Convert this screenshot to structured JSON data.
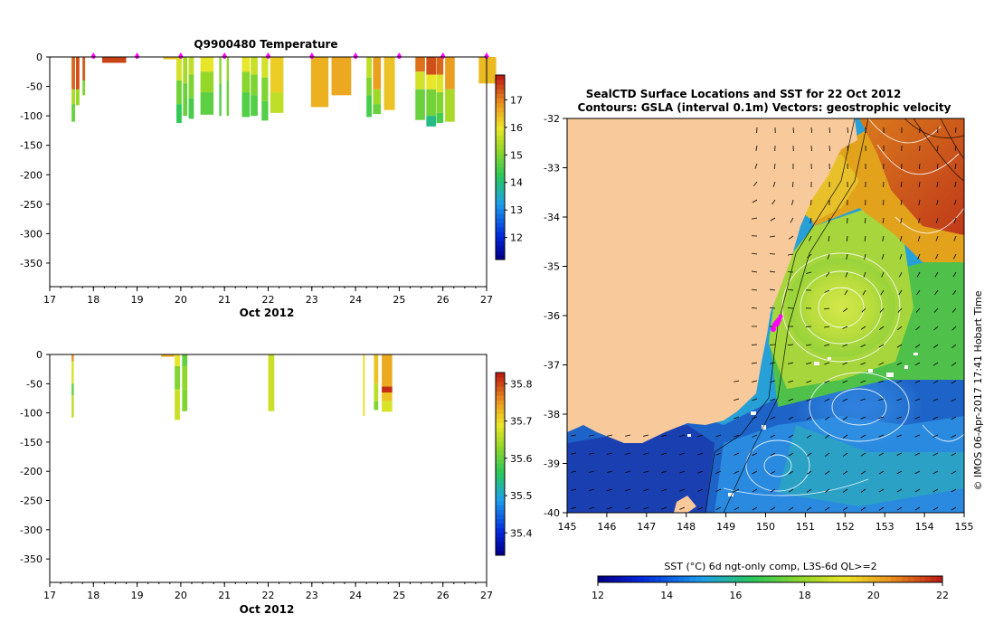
{
  "chart_data": [
    {
      "id": "temperature-panel",
      "type": "heatmap",
      "title": "Q9900480  Temperature",
      "xlabel": "Oct 2012",
      "ylabel": "",
      "x_ticks": [
        "17",
        "18",
        "19",
        "20",
        "21",
        "22",
        "23",
        "24",
        "25",
        "26",
        "27"
      ],
      "y_ticks": [
        "0",
        "-50",
        "-100",
        "-150",
        "-200",
        "-250",
        "-300",
        "-350"
      ],
      "xlim": [
        17,
        27
      ],
      "ylim": [
        -390,
        0
      ],
      "colorbar": {
        "ticks": [
          "12",
          "13",
          "14",
          "15",
          "16",
          "17"
        ],
        "range": [
          11.2,
          17.9
        ]
      },
      "profile_markers": [
        18.0,
        19.0,
        20.0,
        21.0,
        22.0,
        23.0,
        24.0,
        25.0,
        26.0,
        27.0
      ],
      "profiles": [
        {
          "x": 17.5,
          "w": 0.08,
          "layers": [
            [
              0,
              -55,
              17.3
            ],
            [
              -55,
              -80,
              15.4
            ],
            [
              -80,
              -110,
              14.8
            ]
          ]
        },
        {
          "x": 17.6,
          "w": 0.08,
          "layers": [
            [
              0,
              -55,
              17.5
            ],
            [
              -55,
              -82,
              15.2
            ]
          ]
        },
        {
          "x": 17.75,
          "w": 0.06,
          "layers": [
            [
              0,
              -40,
              17.4
            ],
            [
              -40,
              -65,
              15.0
            ]
          ]
        },
        {
          "x": 18.2,
          "w": 0.55,
          "layers": [
            [
              0,
              -10,
              17.6
            ]
          ]
        },
        {
          "x": 19.6,
          "w": 0.3,
          "layers": [
            [
              0,
              -4,
              16.4
            ]
          ]
        },
        {
          "x": 19.9,
          "w": 0.12,
          "layers": [
            [
              0,
              -40,
              15.8
            ],
            [
              -40,
              -80,
              14.9
            ],
            [
              -80,
              -112,
              14.3
            ]
          ]
        },
        {
          "x": 20.05,
          "w": 0.1,
          "layers": [
            [
              0,
              -45,
              15.4
            ],
            [
              -45,
              -100,
              14.8
            ]
          ]
        },
        {
          "x": 20.18,
          "w": 0.12,
          "layers": [
            [
              0,
              -30,
              15.6
            ],
            [
              -30,
              -70,
              15.0
            ],
            [
              -70,
              -105,
              14.5
            ]
          ]
        },
        {
          "x": 20.45,
          "w": 0.3,
          "layers": [
            [
              0,
              -25,
              16.0
            ],
            [
              -25,
              -60,
              15.2
            ],
            [
              -60,
              -98,
              14.7
            ]
          ]
        },
        {
          "x": 20.88,
          "w": 0.05,
          "layers": [
            [
              0,
              -45,
              15.1
            ],
            [
              -45,
              -100,
              14.6
            ]
          ]
        },
        {
          "x": 21.05,
          "w": 0.05,
          "layers": [
            [
              0,
              -40,
              15.2
            ],
            [
              -40,
              -100,
              14.8
            ]
          ]
        },
        {
          "x": 21.4,
          "w": 0.18,
          "layers": [
            [
              0,
              -25,
              16.0
            ],
            [
              -25,
              -60,
              15.1
            ],
            [
              -60,
              -102,
              14.6
            ]
          ]
        },
        {
          "x": 21.6,
          "w": 0.16,
          "layers": [
            [
              0,
              -30,
              15.7
            ],
            [
              -30,
              -65,
              15.0
            ],
            [
              -65,
              -100,
              14.6
            ]
          ]
        },
        {
          "x": 21.85,
          "w": 0.15,
          "layers": [
            [
              0,
              -35,
              15.8
            ],
            [
              -35,
              -75,
              15.0
            ],
            [
              -75,
              -108,
              14.6
            ]
          ]
        },
        {
          "x": 22.05,
          "w": 0.3,
          "layers": [
            [
              0,
              -60,
              16.3
            ],
            [
              -60,
              -95,
              15.6
            ]
          ]
        },
        {
          "x": 22.98,
          "w": 0.4,
          "layers": [
            [
              0,
              -85,
              16.6
            ]
          ]
        },
        {
          "x": 23.45,
          "w": 0.45,
          "layers": [
            [
              0,
              -65,
              16.7
            ]
          ]
        },
        {
          "x": 24.25,
          "w": 0.12,
          "layers": [
            [
              0,
              -35,
              15.6
            ],
            [
              -35,
              -65,
              15.0
            ],
            [
              -65,
              -102,
              14.5
            ]
          ]
        },
        {
          "x": 24.4,
          "w": 0.18,
          "layers": [
            [
              0,
              -55,
              16.8
            ],
            [
              -55,
              -80,
              15.3
            ],
            [
              -80,
              -97,
              14.8
            ]
          ]
        },
        {
          "x": 24.65,
          "w": 0.25,
          "layers": [
            [
              0,
              -90,
              16.4
            ]
          ]
        },
        {
          "x": 25.37,
          "w": 0.22,
          "layers": [
            [
              0,
              -25,
              17.2
            ],
            [
              -25,
              -55,
              15.8
            ],
            [
              -55,
              -107,
              14.8
            ]
          ]
        },
        {
          "x": 25.62,
          "w": 0.22,
          "layers": [
            [
              0,
              -30,
              17.5
            ],
            [
              -30,
              -55,
              16.0
            ],
            [
              -55,
              -100,
              14.9
            ],
            [
              -100,
              -118,
              13.9
            ]
          ]
        },
        {
          "x": 25.85,
          "w": 0.16,
          "layers": [
            [
              0,
              -30,
              17.3
            ],
            [
              -30,
              -60,
              15.9
            ],
            [
              -60,
              -95,
              15.0
            ],
            [
              -95,
              -112,
              14.5
            ]
          ]
        },
        {
          "x": 26.05,
          "w": 0.22,
          "layers": [
            [
              0,
              -55,
              16.8
            ],
            [
              -55,
              -110,
              15.4
            ]
          ]
        },
        {
          "x": 26.82,
          "w": 0.4,
          "layers": [
            [
              0,
              -45,
              16.5
            ]
          ]
        }
      ]
    },
    {
      "id": "salinity-panel",
      "type": "heatmap",
      "title": "",
      "xlabel": "Oct 2012",
      "ylabel": "",
      "x_ticks": [
        "17",
        "18",
        "19",
        "20",
        "21",
        "22",
        "23",
        "24",
        "25",
        "26",
        "27"
      ],
      "y_ticks": [
        "0",
        "-50",
        "-100",
        "-150",
        "-200",
        "-250",
        "-300",
        "-350"
      ],
      "xlim": [
        17,
        27
      ],
      "ylim": [
        -390,
        0
      ],
      "colorbar": {
        "ticks": [
          "35.4",
          "35.5",
          "35.6",
          "35.7",
          "35.8"
        ],
        "range": [
          35.34,
          35.83
        ]
      },
      "profiles": [
        {
          "x": 17.5,
          "w": 0.05,
          "layers": [
            [
              0,
              -12,
              35.76
            ],
            [
              -12,
              -50,
              35.68
            ],
            [
              -50,
              -70,
              35.6
            ],
            [
              -70,
              -108,
              35.66
            ]
          ]
        },
        {
          "x": 19.55,
          "w": 0.3,
          "layers": [
            [
              0,
              -4,
              35.74
            ]
          ]
        },
        {
          "x": 19.86,
          "w": 0.12,
          "layers": [
            [
              0,
              -20,
              35.69
            ],
            [
              -20,
              -60,
              35.62
            ],
            [
              -60,
              -112,
              35.67
            ]
          ]
        },
        {
          "x": 20.03,
          "w": 0.12,
          "layers": [
            [
              0,
              -20,
              35.6
            ],
            [
              -20,
              -60,
              35.63
            ],
            [
              -60,
              -97,
              35.62
            ]
          ]
        },
        {
          "x": 22.0,
          "w": 0.14,
          "layers": [
            [
              0,
              -97,
              35.67
            ]
          ]
        },
        {
          "x": 24.17,
          "w": 0.04,
          "layers": [
            [
              0,
              -105,
              35.7
            ]
          ]
        },
        {
          "x": 24.42,
          "w": 0.1,
          "layers": [
            [
              0,
              -50,
              35.72
            ],
            [
              -50,
              -80,
              35.66
            ],
            [
              -80,
              -95,
              35.62
            ]
          ]
        },
        {
          "x": 24.6,
          "w": 0.24,
          "layers": [
            [
              0,
              -55,
              35.74
            ],
            [
              -55,
              -65,
              35.82
            ],
            [
              -65,
              -80,
              35.72
            ],
            [
              -80,
              -98,
              35.68
            ]
          ]
        }
      ]
    },
    {
      "id": "map-panel",
      "type": "heatmap",
      "title_line1": "SealCTD Surface Locations and SST for 22 Oct 2012",
      "title_line2": "Contours: GSLA (interval 0.1m) Vectors: geostrophic velocity",
      "x_ticks": [
        "145",
        "146",
        "147",
        "148",
        "149",
        "150",
        "151",
        "152",
        "153",
        "154",
        "155"
      ],
      "y_ticks": [
        "-32",
        "-33",
        "-34",
        "-35",
        "-36",
        "-37",
        "-38",
        "-39",
        "-40"
      ],
      "xlim": [
        145,
        155
      ],
      "ylim": [
        -40,
        -32
      ],
      "colorbar": {
        "label": "SST (°C) 6d ngt-only comp, L3S-6d QL>=2",
        "ticks": [
          "12",
          "14",
          "16",
          "18",
          "20",
          "22"
        ],
        "range": [
          12,
          22
        ]
      },
      "seal_location": {
        "lon": 150.2,
        "lat": -36.2
      },
      "credit": "© IMOS 06-Apr-2017 17:41 Hobart Time"
    }
  ]
}
